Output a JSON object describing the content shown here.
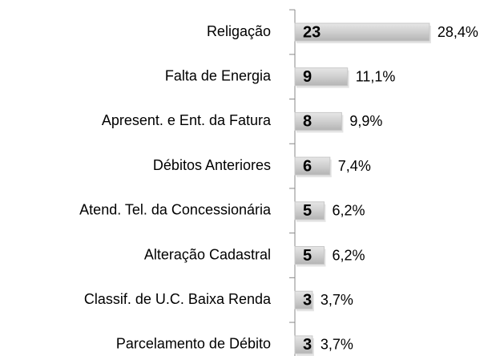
{
  "chart_data": {
    "type": "hbar",
    "categories": [
      "Religação",
      "Falta de Energia",
      "Apresent. e Ent. da Fatura",
      "Débitos Anteriores",
      "Atend. Tel. da Concessionária",
      "Alteração Cadastral",
      "Classif. de U.C. Baixa Renda",
      "Parcelamento de Débito"
    ],
    "values": [
      23,
      9,
      8,
      6,
      5,
      5,
      3,
      3
    ],
    "share_labels": [
      "28,4%",
      "11,1%",
      "9,9%",
      "7,4%",
      "6,2%",
      "6,2%",
      "3,7%",
      "3,7%"
    ],
    "color": "#c8c8c8"
  }
}
